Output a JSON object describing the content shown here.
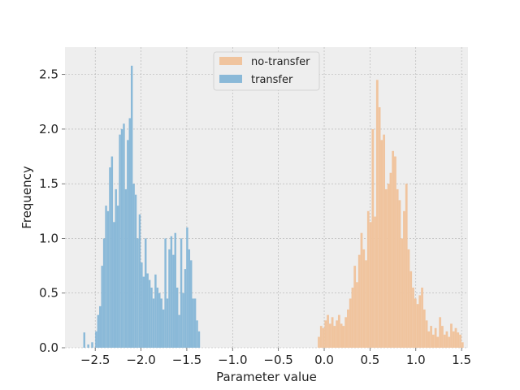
{
  "chart_data": {
    "type": "histogram",
    "xlabel": "Parameter value",
    "ylabel": "Frequency",
    "xlim": [
      -2.83,
      1.57
    ],
    "ylim": [
      0,
      2.75
    ],
    "xticks": [
      -2.5,
      -2.0,
      -1.5,
      -1.0,
      -0.5,
      0.0,
      0.5,
      1.0,
      1.5
    ],
    "xtick_labels": [
      "−2.5",
      "−2.0",
      "−1.5",
      "−1.0",
      "−0.5",
      "0.0",
      "0.5",
      "1.0",
      "1.5"
    ],
    "yticks": [
      0.0,
      0.5,
      1.0,
      1.5,
      2.0,
      2.5
    ],
    "ytick_labels": [
      "0.0",
      "0.5",
      "1.0",
      "1.5",
      "2.0",
      "2.5"
    ],
    "grid": true,
    "legend_position": "top-center",
    "series": [
      {
        "name": "no-transfer",
        "color": "#f0c49e",
        "bin_start": -0.07,
        "bin_width": 0.0245,
        "values": [
          0.1,
          0.2,
          0.18,
          0.25,
          0.3,
          0.22,
          0.28,
          0.2,
          0.25,
          0.3,
          0.22,
          0.2,
          0.28,
          0.35,
          0.45,
          0.55,
          0.75,
          0.6,
          0.85,
          1.05,
          0.9,
          0.8,
          1.25,
          1.15,
          2.0,
          1.2,
          2.45,
          2.2,
          1.9,
          1.95,
          1.45,
          1.5,
          1.6,
          1.8,
          1.75,
          1.45,
          1.35,
          1.0,
          1.25,
          1.5,
          0.9,
          0.7,
          0.55,
          0.45,
          0.4,
          0.48,
          0.55,
          0.35,
          0.25,
          0.15,
          0.2,
          0.12,
          0.18,
          0.1,
          0.28,
          0.2,
          0.12,
          0.15,
          0.1,
          0.22,
          0.15,
          0.18,
          0.14,
          0.12,
          0.05
        ]
      },
      {
        "name": "transfer",
        "color": "#8ab9d8",
        "bin_start": -2.63,
        "bin_width": 0.0216,
        "values": [
          0.14,
          0.0,
          0.03,
          0.0,
          0.05,
          0.0,
          0.15,
          0.3,
          0.38,
          0.75,
          1.0,
          1.3,
          1.25,
          1.65,
          1.75,
          1.15,
          1.45,
          1.3,
          1.95,
          2.0,
          2.05,
          1.45,
          1.9,
          2.1,
          2.58,
          1.5,
          1.4,
          1.0,
          1.22,
          0.78,
          0.65,
          1.0,
          0.68,
          0.62,
          0.55,
          0.45,
          0.67,
          0.55,
          0.5,
          0.45,
          0.35,
          1.0,
          0.45,
          0.9,
          1.02,
          0.85,
          1.05,
          0.55,
          0.3,
          1.0,
          0.5,
          0.72,
          1.1,
          0.9,
          0.8,
          0.45,
          0.45,
          0.25,
          0.15
        ]
      }
    ]
  }
}
